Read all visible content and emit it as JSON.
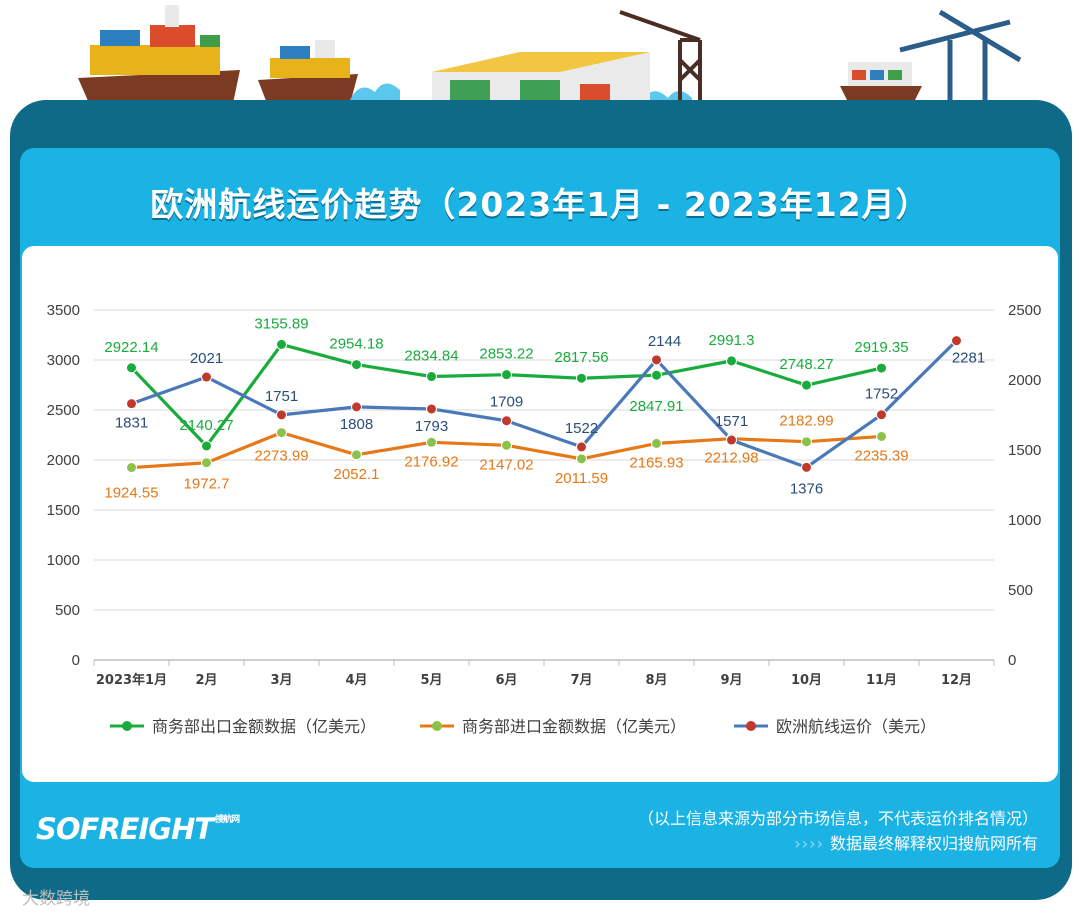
{
  "title": "欧洲航线运价趋势（2023年1月 - 2023年12月）",
  "footer": {
    "note": "（以上信息来源为部分市场信息，不代表运价排名情况）",
    "rights": "数据最终解释权归搜航网所有",
    "chevrons": "››››"
  },
  "logo": {
    "text": "SOFREIGHT",
    "sub": "搜航网"
  },
  "watermark": "大数跨境",
  "colors": {
    "green": "#1aab3d",
    "orange": "#e67817",
    "blue": "#4a78b8",
    "red_marker": "#c0392b",
    "green_marker": "#8bc34a"
  },
  "chart_data": {
    "type": "line",
    "categories": [
      "2023年1月",
      "2月",
      "3月",
      "4月",
      "5月",
      "6月",
      "7月",
      "8月",
      "9月",
      "10月",
      "11月",
      "12月"
    ],
    "left_axis": {
      "ylim": [
        0,
        3500
      ],
      "ticks": [
        0,
        500,
        1000,
        1500,
        2000,
        2500,
        3000,
        3500
      ]
    },
    "right_axis": {
      "ylim": [
        0,
        2500
      ],
      "ticks": [
        0,
        500,
        1000,
        1500,
        2000,
        2500
      ]
    },
    "series": [
      {
        "name": "商务部出口金额数据（亿美元）",
        "axis": "left",
        "color": "#1aab3d",
        "values": [
          2922.14,
          2140.27,
          3155.89,
          2954.18,
          2834.84,
          2853.22,
          2817.56,
          2847.91,
          2991.3,
          2748.27,
          2919.35,
          null
        ],
        "labels": [
          "2922.14",
          "2140.27",
          "3155.89",
          "2954.18",
          "2834.84",
          "2853.22",
          "2817.56",
          "2847.91",
          "2991.3",
          "2748.27",
          "2919.35",
          ""
        ]
      },
      {
        "name": "商务部进口金额数据（亿美元）",
        "axis": "left",
        "color": "#e67817",
        "values": [
          1924.55,
          1972.7,
          2273.99,
          2052.1,
          2176.92,
          2147.02,
          2011.59,
          2165.93,
          2212.98,
          2182.99,
          2235.39,
          null
        ],
        "labels": [
          "1924.55",
          "1972.7",
          "2273.99",
          "2052.1",
          "2176.92",
          "2147.02",
          "2011.59",
          "2165.93",
          "2212.98",
          "2182.99",
          "2235.39",
          ""
        ]
      },
      {
        "name": "欧洲航线运价（美元）",
        "axis": "right",
        "color": "#4a78b8",
        "values": [
          1831,
          2021,
          1751,
          1808,
          1793,
          1709,
          1522,
          2144,
          1571,
          1376,
          1752,
          2281
        ],
        "labels": [
          "1831",
          "2021",
          "1751",
          "1808",
          "1793",
          "1709",
          "1522",
          "2144",
          "1571",
          "1376",
          "1752",
          "2281"
        ]
      }
    ],
    "legend": "bottom",
    "grid": true
  }
}
